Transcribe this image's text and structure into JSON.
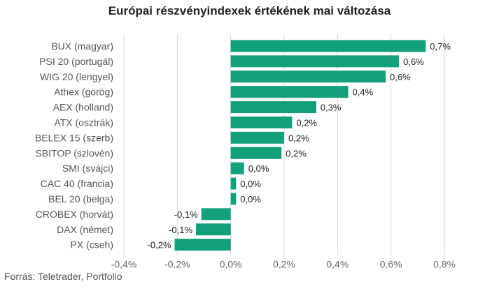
{
  "chart_data": {
    "type": "bar",
    "orientation": "horizontal",
    "title": "Európai részvényindexek értékének mai változása",
    "categories": [
      "BUX (magyar)",
      "PSI 20 (portugál)",
      "WIG 20 (lengyel)",
      "Athex (görög)",
      "AEX (holland)",
      "ATX (osztrák)",
      "BELEX 15 (szerb)",
      "SBITOP (szlovén)",
      "SMI (svájci)",
      "CAC 40 (francia)",
      "BEL 20 (belga)",
      "CROBEX (horvát)",
      "DAX (német)",
      "PX (cseh)"
    ],
    "values": [
      0.73,
      0.63,
      0.58,
      0.44,
      0.32,
      0.23,
      0.2,
      0.19,
      0.05,
      0.02,
      0.02,
      -0.11,
      -0.13,
      -0.21
    ],
    "data_labels": [
      "0,7%",
      "0,6%",
      "0,6%",
      "0,4%",
      "0,3%",
      "0,2%",
      "0,2%",
      "0,2%",
      "0,0%",
      "0,0%",
      "0,0%",
      "-0,1%",
      "-0,1%",
      "-0,2%"
    ],
    "xlim": [
      -0.4,
      0.8
    ],
    "x_ticks": [
      -0.4,
      -0.2,
      0.0,
      0.2,
      0.4,
      0.6,
      0.8
    ],
    "x_tick_labels": [
      "-0,4%",
      "-0,2%",
      "0,0%",
      "0,2%",
      "0,4%",
      "0,6%",
      "0,8%"
    ],
    "grid": "vertical",
    "bar_color": "#12a07a",
    "grid_color": "#d9d9d9"
  },
  "source": "Forrás: Teletrader, Portfolio"
}
